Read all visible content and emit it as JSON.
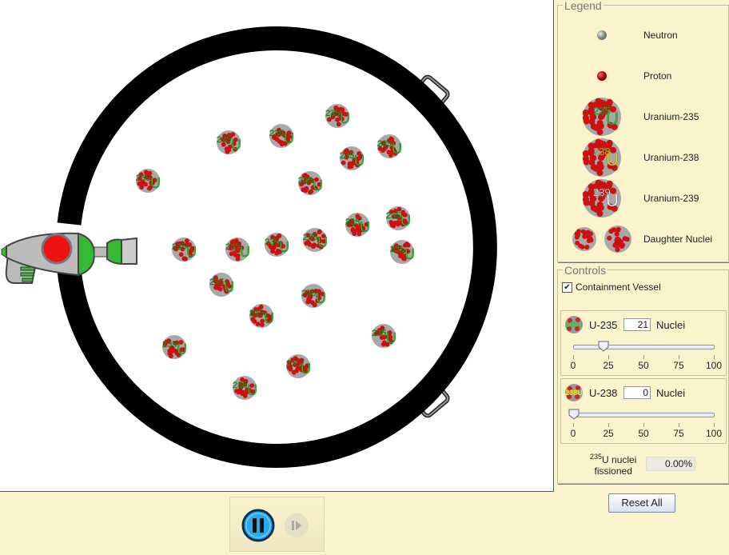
{
  "legend": {
    "title": "Legend",
    "items": [
      {
        "label": "Neutron",
        "icon": "neutron-icon"
      },
      {
        "label": "Proton",
        "icon": "proton-icon"
      },
      {
        "label": "Uranium-235",
        "icon": "u235-icon",
        "mass": "235",
        "symbol": "U",
        "color": "#22cc22"
      },
      {
        "label": "Uranium-238",
        "icon": "u238-icon",
        "mass": "238",
        "symbol": "U",
        "color": "#f0e000"
      },
      {
        "label": "Uranium-239",
        "icon": "u239-icon",
        "mass": "239",
        "symbol": "U",
        "color": "#ffffff"
      },
      {
        "label": "Daughter Nuclei",
        "icon": "daughter-nuclei-icon"
      }
    ]
  },
  "controls": {
    "title": "Controls",
    "containment_label": "Containment Vessel",
    "containment_checked": true,
    "u235": {
      "label": "U-235",
      "value": "21",
      "unit": "Nuclei",
      "slider_value": 21,
      "ticks": [
        "0",
        "25",
        "50",
        "75",
        "100"
      ]
    },
    "u238": {
      "label": "U-238",
      "value": "0",
      "unit": "Nuclei",
      "slider_value": 0,
      "ticks": [
        "0",
        "25",
        "50",
        "75",
        "100"
      ]
    },
    "fissioned_sup": "235",
    "fissioned_label1": "U nuclei",
    "fissioned_label2": "fissioned",
    "fissioned_value": "0.00%"
  },
  "reset_label": "Reset All",
  "nucleus": {
    "mass": "235",
    "symbol": "U",
    "count": 21
  },
  "colors": {
    "panel": "#fbf3cb",
    "u235": "#22cc22",
    "proton": "#cc1111",
    "neutron": "#a0a0a0"
  }
}
